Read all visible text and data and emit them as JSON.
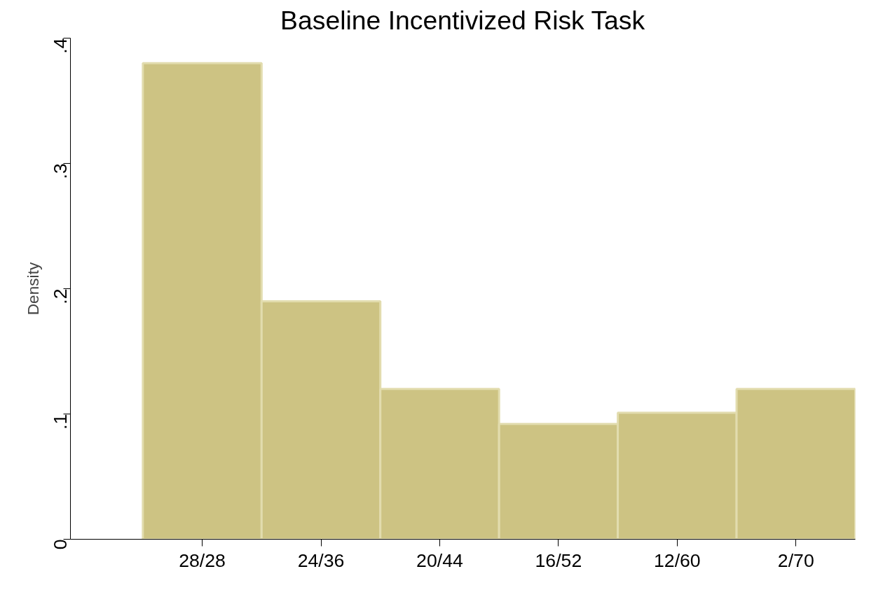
{
  "chart_data": {
    "type": "bar",
    "title": "Baseline Incentivized Risk Task",
    "ylabel": "Density",
    "categories": [
      "28/28",
      "24/36",
      "20/44",
      "16/52",
      "12/60",
      "2/70"
    ],
    "values": [
      0.38,
      0.19,
      0.12,
      0.092,
      0.101,
      0.12
    ],
    "color": "#cdc383",
    "ylim": [
      0,
      0.4
    ],
    "yticks": [
      {
        "value": 0,
        "label": "0"
      },
      {
        "value": 0.1,
        "label": ".1"
      },
      {
        "value": 0.2,
        "label": ".2"
      },
      {
        "value": 0.3,
        "label": ".3"
      },
      {
        "value": 0.4,
        "label": ".4"
      }
    ],
    "grid": false
  }
}
